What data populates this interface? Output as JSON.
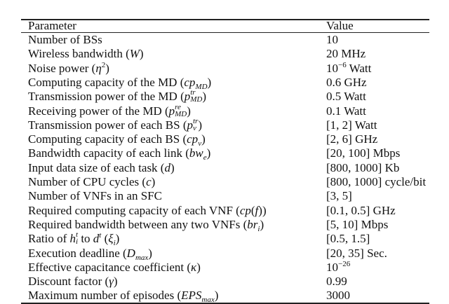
{
  "table": {
    "header": [
      "Parameter",
      "Value"
    ],
    "rows": [
      [
        [
          {
            "text": "Number of BSs"
          }
        ],
        [
          {
            "text": "10"
          }
        ]
      ],
      [
        [
          {
            "text": "Wireless bandwidth ("
          },
          {
            "text": "W",
            "style": "math"
          },
          {
            "text": ")"
          }
        ],
        [
          {
            "text": "20 MHz"
          }
        ]
      ],
      [
        [
          {
            "text": "Noise power ("
          },
          {
            "text": "η",
            "style": "math"
          },
          {
            "text": "2",
            "style": "sup"
          },
          {
            "text": ")"
          }
        ],
        [
          {
            "text": "10"
          },
          {
            "text": "−6",
            "style": "sup"
          },
          {
            "text": " Watt"
          }
        ]
      ],
      [
        [
          {
            "text": "Computing capacity of the MD ("
          },
          {
            "text": "cp",
            "style": "math"
          },
          {
            "text": "MD",
            "style": "math-sub"
          },
          {
            "text": ")"
          }
        ],
        [
          {
            "text": "0.6 GHz"
          }
        ]
      ],
      [
        [
          {
            "text": "Transmission power of the MD ("
          },
          {
            "text": "p",
            "style": "math"
          },
          {
            "sup": "tr",
            "sub": "MD"
          },
          {
            "text": ")"
          }
        ],
        [
          {
            "text": "0.5 Watt"
          }
        ]
      ],
      [
        [
          {
            "text": "Receiving power of the MD ("
          },
          {
            "text": "p",
            "style": "math"
          },
          {
            "sup": "re",
            "sub": "MD"
          },
          {
            "text": ")"
          }
        ],
        [
          {
            "text": "0.1 Watt"
          }
        ]
      ],
      [
        [
          {
            "text": "Transmission power of each BS ("
          },
          {
            "text": "p",
            "style": "math"
          },
          {
            "sup": "tr",
            "sub": "v"
          },
          {
            "text": ")"
          }
        ],
        [
          {
            "text": "[1, 2] Watt"
          }
        ]
      ],
      [
        [
          {
            "text": "Computing capacity of each BS ("
          },
          {
            "text": "cp",
            "style": "math"
          },
          {
            "text": "v",
            "style": "math-sub"
          },
          {
            "text": ")"
          }
        ],
        [
          {
            "text": "[2, 6] GHz"
          }
        ]
      ],
      [
        [
          {
            "text": "Bandwidth capacity of each link ("
          },
          {
            "text": "bw",
            "style": "math"
          },
          {
            "text": "e",
            "style": "math-sub"
          },
          {
            "text": ")"
          }
        ],
        [
          {
            "text": "[20, 100] Mbps"
          }
        ]
      ],
      [
        [
          {
            "text": "Input data size of each task ("
          },
          {
            "text": "d",
            "style": "math"
          },
          {
            "text": ")"
          }
        ],
        [
          {
            "text": "[800, 1000] Kb"
          }
        ]
      ],
      [
        [
          {
            "text": "Number of CPU cycles ("
          },
          {
            "text": "c",
            "style": "math"
          },
          {
            "text": ")"
          }
        ],
        [
          {
            "text": "[800, 1000] cycle/bit"
          }
        ]
      ],
      [
        [
          {
            "text": "Number of VNFs in an SFC"
          }
        ],
        [
          {
            "text": "[3, 5]"
          }
        ]
      ],
      [
        [
          {
            "text": "Required computing capacity of each VNF ("
          },
          {
            "text": "cp",
            "style": "math"
          },
          {
            "text": "("
          },
          {
            "text": "f",
            "style": "math"
          },
          {
            "text": "))"
          }
        ],
        [
          {
            "text": "[0.1, 0.5] GHz"
          }
        ]
      ],
      [
        [
          {
            "text": "Required bandwidth between any two VNFs ("
          },
          {
            "text": "br",
            "style": "math"
          },
          {
            "text": "i",
            "style": "math-sub"
          },
          {
            "text": ")"
          }
        ],
        [
          {
            "text": "[5, 10] Mbps"
          }
        ]
      ],
      [
        [
          {
            "text": "Ratio of "
          },
          {
            "text": "h",
            "style": "math"
          },
          {
            "sup": "t",
            "sub": "i"
          },
          {
            "text": " to "
          },
          {
            "text": "d",
            "style": "math"
          },
          {
            "text": "t",
            "style": "math-sup"
          },
          {
            "text": " ("
          },
          {
            "text": "ξ",
            "style": "math"
          },
          {
            "text": "i",
            "style": "math-sub"
          },
          {
            "text": ")"
          }
        ],
        [
          {
            "text": "[0.5, 1.5]"
          }
        ]
      ],
      [
        [
          {
            "text": "Execution deadline ("
          },
          {
            "text": "D",
            "style": "math"
          },
          {
            "text": "max",
            "style": "math-sub"
          },
          {
            "text": ")"
          }
        ],
        [
          {
            "text": "[20, 35] Sec."
          }
        ]
      ],
      [
        [
          {
            "text": "Effective capacitance coefficient ("
          },
          {
            "text": "κ",
            "style": "math"
          },
          {
            "text": ")"
          }
        ],
        [
          {
            "text": "10"
          },
          {
            "text": "−26",
            "style": "sup"
          }
        ]
      ],
      [
        [
          {
            "text": "Discount factor ("
          },
          {
            "text": "γ",
            "style": "math"
          },
          {
            "text": ")"
          }
        ],
        [
          {
            "text": "0.99"
          }
        ]
      ],
      [
        [
          {
            "text": "Maximum number of episodes ("
          },
          {
            "text": "EPS",
            "style": "math"
          },
          {
            "text": "max",
            "style": "math-sub"
          },
          {
            "text": ")"
          }
        ],
        [
          {
            "text": "3000"
          }
        ]
      ]
    ]
  }
}
